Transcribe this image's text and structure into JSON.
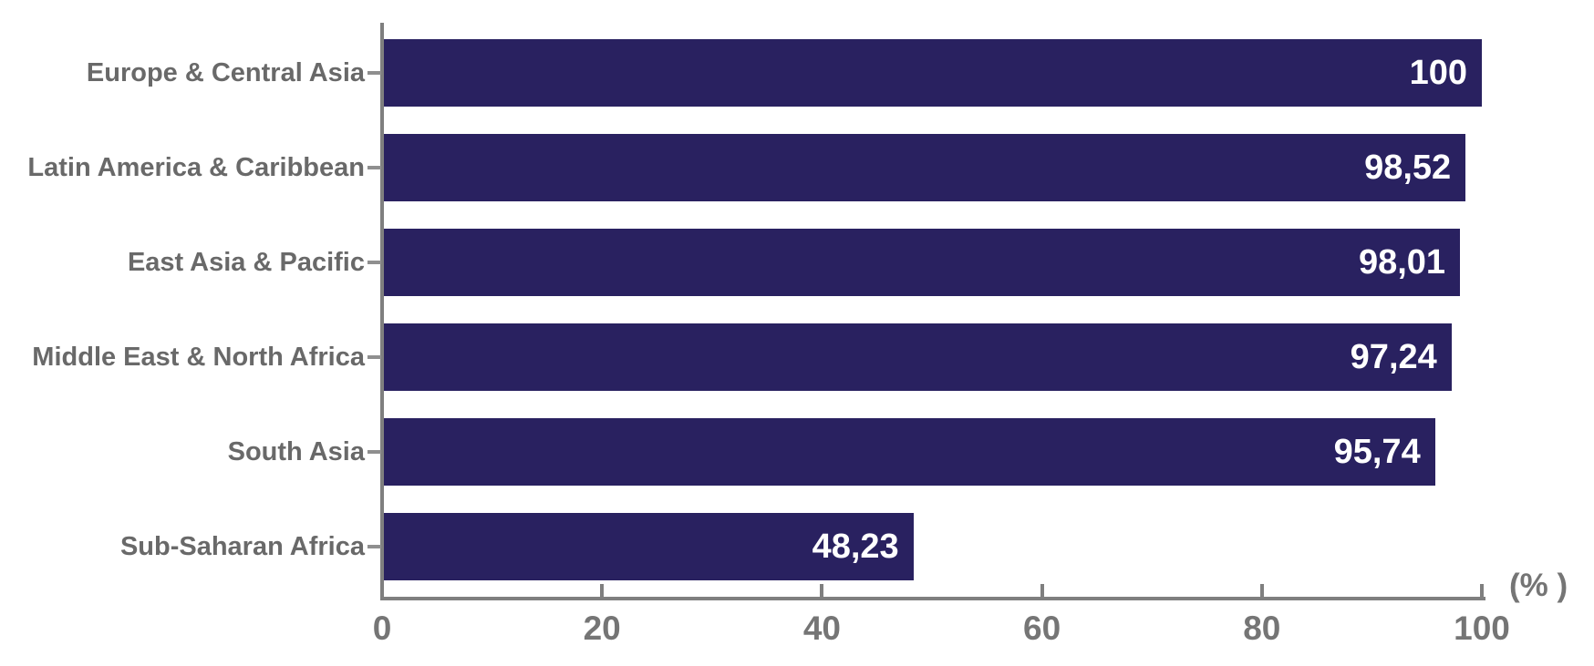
{
  "chart_data": {
    "type": "bar",
    "orientation": "horizontal",
    "title": "",
    "categories": [
      "Europe & Central Asia",
      "Latin America & Caribbean",
      "East Asia & Pacific",
      "Middle East & North Africa",
      "South Asia",
      "Sub-Saharan Africa"
    ],
    "values": [
      100,
      98.52,
      98.01,
      97.24,
      95.74,
      48.23
    ],
    "value_labels": [
      "100",
      "98,52",
      "98,01",
      "97,24",
      "95,74",
      "48,23"
    ],
    "xlabel": "(% )",
    "ylabel": "",
    "xlim": [
      0,
      100
    ],
    "x_ticks": [
      0,
      20,
      40,
      60,
      80,
      100
    ],
    "x_tick_labels": [
      "0",
      "20",
      "40",
      "60",
      "80",
      "100"
    ],
    "grid": false,
    "legend": false,
    "value_label_position": "inside-right",
    "colors": {
      "bar": "#292160",
      "category_label": "#696969",
      "tick_label": "#757575",
      "axis": "#7f7f7f",
      "category_tick": "#8f8f8f",
      "value_text": "#ffffff",
      "background": "#ffffff"
    }
  }
}
